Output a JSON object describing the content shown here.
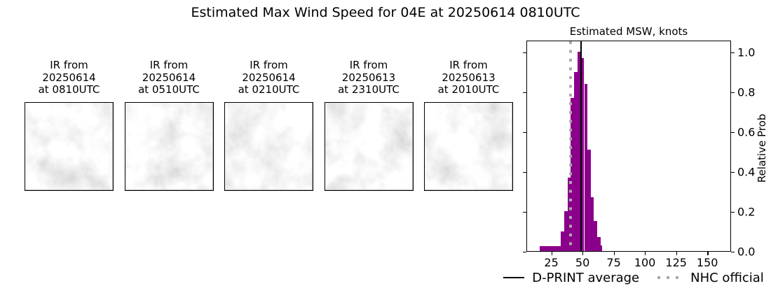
{
  "title": "Estimated Max Wind Speed for 04E at 20250614 0810UTC",
  "panels": [
    {
      "label_lines": [
        "IR from",
        "20250614",
        "at 0810UTC"
      ]
    },
    {
      "label_lines": [
        "IR from",
        "20250614",
        "at 0510UTC"
      ]
    },
    {
      "label_lines": [
        "IR from",
        "20250614",
        "at 0210UTC"
      ]
    },
    {
      "label_lines": [
        "IR from",
        "20250613",
        "at 2310UTC"
      ]
    },
    {
      "label_lines": [
        "IR from",
        "20250613",
        "at 2010UTC"
      ]
    }
  ],
  "chart_data": {
    "type": "bar",
    "title": "Estimated MSW, knots",
    "ylabel_right": "Relative Prob",
    "xlim": [
      5,
      169
    ],
    "ylim": [
      0,
      1.06
    ],
    "x_ticks": [
      25,
      50,
      75,
      100,
      125,
      150
    ],
    "y_ticks": [
      0.0,
      0.2,
      0.4,
      0.6,
      0.8,
      1.0
    ],
    "grid": false,
    "bar_color": "#8B008B",
    "bins": [
      {
        "x0": 15.3,
        "x1": 32.0,
        "h": 0.025
      },
      {
        "x0": 32.0,
        "x1": 34.8,
        "h": 0.1
      },
      {
        "x0": 34.8,
        "x1": 37.4,
        "h": 0.2
      },
      {
        "x0": 37.4,
        "x1": 40.0,
        "h": 0.37
      },
      {
        "x0": 40.0,
        "x1": 42.6,
        "h": 0.77
      },
      {
        "x0": 42.6,
        "x1": 45.6,
        "h": 0.9
      },
      {
        "x0": 45.6,
        "x1": 48.2,
        "h": 1.0
      },
      {
        "x0": 48.2,
        "x1": 50.8,
        "h": 0.97
      },
      {
        "x0": 50.8,
        "x1": 53.4,
        "h": 0.84
      },
      {
        "x0": 53.4,
        "x1": 56.0,
        "h": 0.51
      },
      {
        "x0": 56.0,
        "x1": 58.6,
        "h": 0.27
      },
      {
        "x0": 58.6,
        "x1": 61.2,
        "h": 0.15
      },
      {
        "x0": 61.2,
        "x1": 63.8,
        "h": 0.07
      },
      {
        "x0": 63.8,
        "x1": 65.4,
        "h": 0.03
      }
    ],
    "dprint_average_knots": 48,
    "nhc_official_knots": 40,
    "line_colors": {
      "dprint_average": "#000000",
      "nhc_official": "#ABABAB"
    },
    "legend": [
      {
        "label": "D-PRINT average",
        "style": "solid-black"
      },
      {
        "label": "NHC official",
        "style": "dotted-gray"
      }
    ],
    "legend_position": "below"
  }
}
